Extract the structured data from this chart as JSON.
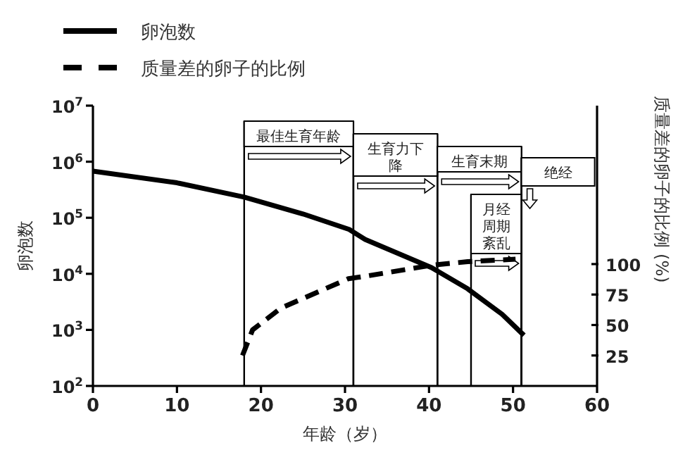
{
  "chart_data": {
    "type": "line",
    "xlabel": "年龄（岁）",
    "ylabel": "卵泡数",
    "y2label": "质量差的卵子的比例 (%)",
    "xlim": [
      0,
      60
    ],
    "xticks": [
      0,
      10,
      20,
      30,
      40,
      50,
      60
    ],
    "ylim": [
      100,
      10000000
    ],
    "yticks": [
      {
        "value": 100,
        "label": "10$^{2}$"
      },
      {
        "value": 1000,
        "label": "10$^{3}$"
      },
      {
        "value": 10000,
        "label": "10$^{4}$"
      },
      {
        "value": 100000,
        "label": "10$^{5}$"
      },
      {
        "value": 1000000,
        "label": "10$^{6}$"
      },
      {
        "value": 10000000,
        "label": "10$^{7}$"
      }
    ],
    "y2lim": [
      0,
      230
    ],
    "y2ticks": [
      25,
      50,
      75,
      100
    ],
    "log": "y",
    "legend": "top left",
    "marker": "none",
    "series": [
      {
        "name": "卵泡数",
        "color": "#000000",
        "line_style": "solid",
        "x": [
          0,
          10,
          18,
          25,
          30.5,
          32.4,
          40.3,
          44.6,
          48.7,
          51.3
        ],
        "values": [
          680000,
          420000,
          234000,
          117000,
          62000,
          41000,
          12900,
          5400,
          1900,
          800
        ]
      },
      {
        "name": "质量差的卵子的比例",
        "color": "#000000",
        "line_style": "dashed",
        "axis": "y2",
        "x": [
          17.8,
          19,
          22.4,
          27.4,
          30.4,
          32.4,
          40.3,
          44.6,
          50.3
        ],
        "values": [
          25,
          46,
          64,
          79,
          88,
          90,
          99,
          102,
          104
        ]
      }
    ],
    "bands": [
      {
        "axis": "x",
        "from": 18,
        "to": 31,
        "label": "最佳生育年龄"
      },
      {
        "axis": "x",
        "from": 31,
        "to": 41,
        "label": "生育力下降"
      },
      {
        "axis": "x",
        "from": 41,
        "to": 51,
        "label": "生育末期"
      },
      {
        "axis": "x",
        "from": 45,
        "to": 51,
        "label": "月经周期紊乱"
      }
    ],
    "ref_lines": [
      {
        "axis": "x",
        "value": 51,
        "label": "绝经"
      }
    ]
  }
}
